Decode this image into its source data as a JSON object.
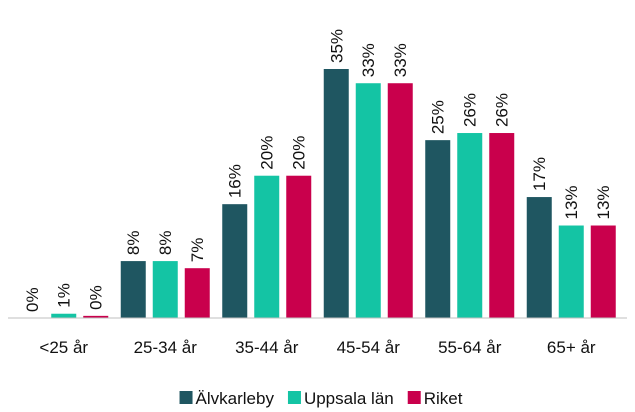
{
  "chart_data": {
    "type": "bar",
    "categories": [
      "<25 år",
      "25-34 år",
      "35-44 år",
      "45-54 år",
      "55-64 år",
      "65+ år"
    ],
    "series": [
      {
        "name": "Älvkarleby",
        "color": "#1f5661",
        "values": [
          0,
          8,
          16,
          35,
          25,
          17
        ],
        "value_labels": [
          "0%",
          "8%",
          "16%",
          "35%",
          "25%",
          "17%"
        ]
      },
      {
        "name": "Uppsala län",
        "color": "#14c4a4",
        "values": [
          0.6,
          8,
          20,
          33,
          26,
          13
        ],
        "value_labels": [
          "1%",
          "8%",
          "20%",
          "33%",
          "26%",
          "13%"
        ]
      },
      {
        "name": "Riket",
        "color": "#c9004c",
        "values": [
          0.3,
          7,
          20,
          33,
          26,
          13
        ],
        "value_labels": [
          "0%",
          "7%",
          "20%",
          "33%",
          "26%",
          "13%"
        ]
      }
    ],
    "legend": "bottom"
  }
}
